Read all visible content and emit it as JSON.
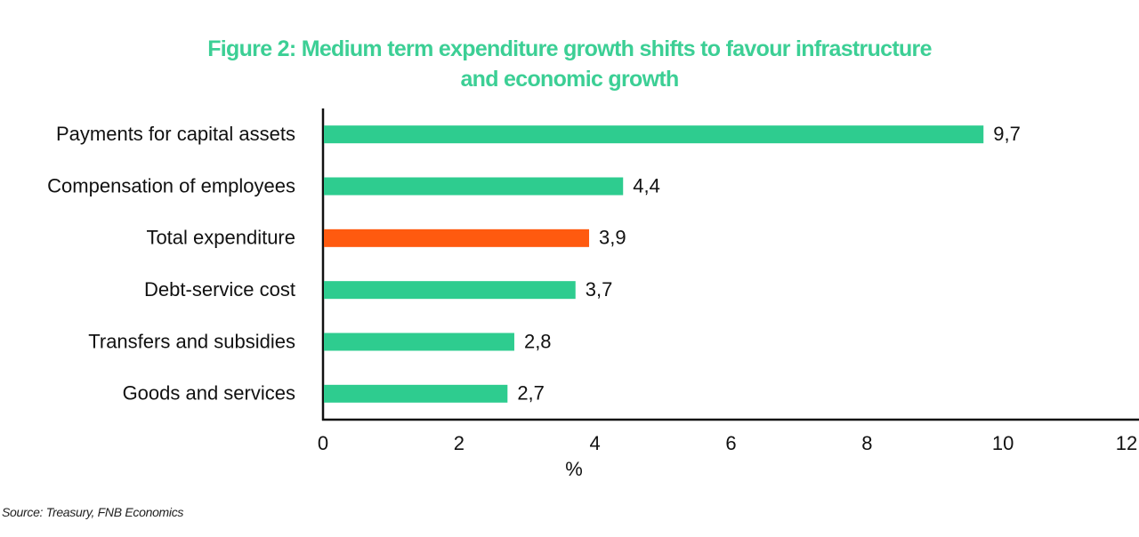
{
  "chart_data": {
    "type": "hbar",
    "title": "Figure 2: Medium term expenditure growth shifts to favour infrastructure and economic growth",
    "categories": [
      "Payments for capital assets",
      "Compensation of employees",
      "Total expenditure",
      "Debt-service cost",
      "Transfers and subsidies",
      "Goods and services"
    ],
    "values": [
      9.7,
      4.4,
      3.9,
      3.7,
      2.8,
      2.7
    ],
    "value_labels": [
      "9,7",
      "4,4",
      "3,9",
      "3,7",
      "2,8",
      "2,7"
    ],
    "colors": [
      "#2ecc8f",
      "#2ecc8f",
      "#ff5a0f",
      "#2ecc8f",
      "#2ecc8f",
      "#2ecc8f"
    ],
    "xlabel": "%",
    "xlim": [
      0,
      12
    ],
    "xticks": [
      0,
      2,
      4,
      6,
      8,
      10,
      12
    ],
    "grid": false,
    "source": "Source: Treasury, FNB Economics"
  }
}
